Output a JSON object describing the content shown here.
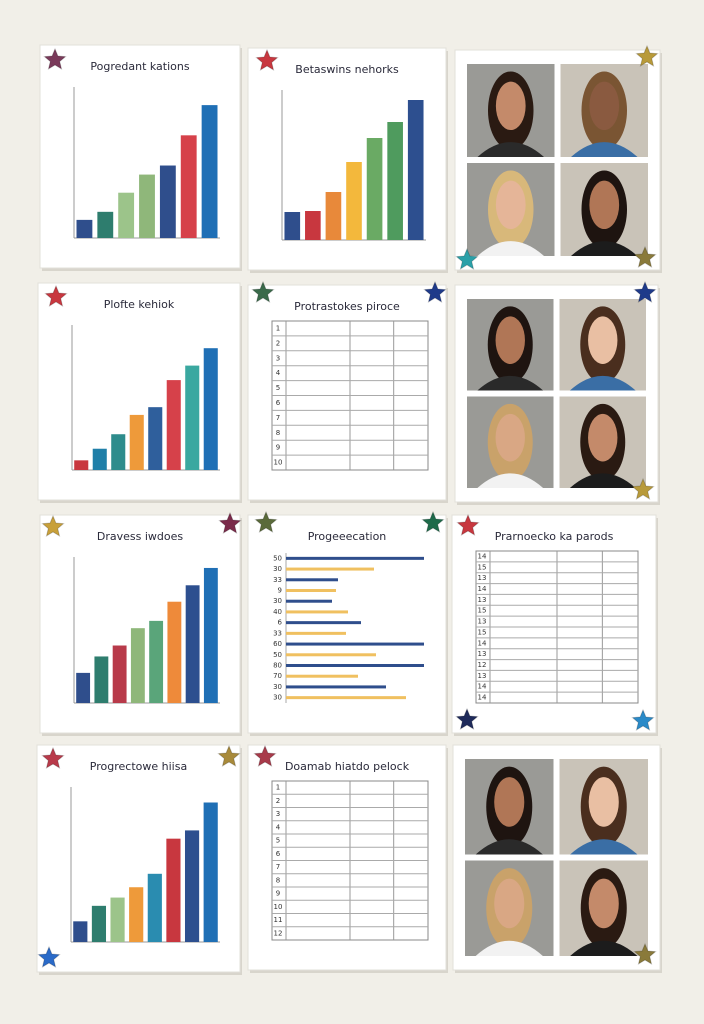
{
  "panels": [
    {
      "kind": "bar",
      "title": "Pogredant kations",
      "values": [
        18,
        26,
        45,
        63,
        72,
        102,
        132
      ],
      "colors": [
        "#2f4e8c",
        "#2e7d6e",
        "#9cc48a",
        "#8fb77a",
        "#2f4e8c",
        "#d6414a",
        "#1f6fb5"
      ],
      "ylim": [
        0,
        150
      ]
    },
    {
      "kind": "bar",
      "title": "Betaswins nehorks",
      "values": [
        28,
        29,
        48,
        78,
        102,
        118,
        140
      ],
      "colors": [
        "#2f4e8c",
        "#c8373f",
        "#e8893a",
        "#f3b83c",
        "#6aaa64",
        "#4f9b5e",
        "#2d4f8f"
      ],
      "ylim": [
        0,
        150
      ]
    },
    {
      "kind": "photos"
    },
    {
      "kind": "bar",
      "title": "Plofte kehiok",
      "values": [
        10,
        22,
        37,
        57,
        65,
        93,
        108,
        126
      ],
      "colors": [
        "#c8373f",
        "#1f7fa8",
        "#2e8c8c",
        "#ee9a3a",
        "#2f5f9c",
        "#d6414a",
        "#3aa8a0",
        "#1f6fb5"
      ],
      "ylim": [
        0,
        150
      ]
    },
    {
      "kind": "table",
      "title": "Protrastokes piroce",
      "rows": [
        "1",
        "2",
        "3",
        "4",
        "5",
        "6",
        "7",
        "8",
        "9",
        "10"
      ]
    },
    {
      "kind": "photos"
    },
    {
      "kind": "bar",
      "title": "Dravess iwdoes",
      "values": [
        33,
        51,
        63,
        82,
        90,
        111,
        129,
        148
      ],
      "colors": [
        "#2f4e8c",
        "#2e7d6e",
        "#b83a4a",
        "#8fb77a",
        "#5aa57a",
        "#ee8a3a",
        "#2d4f8f",
        "#1f6fb5"
      ],
      "ylim": [
        0,
        160
      ]
    },
    {
      "kind": "hbar",
      "title": "Progeeecation",
      "rows": [
        "50",
        "30",
        "33",
        "9",
        "30",
        "40",
        "6",
        "33",
        "60",
        "50",
        "80",
        "70",
        "30",
        "30"
      ],
      "values": [
        138,
        88,
        52,
        50,
        46,
        62,
        75,
        60,
        138,
        90,
        138,
        72,
        100,
        120
      ],
      "colors": [
        "#2f4e8c",
        "#f0c060"
      ],
      "xlim": [
        0,
        140
      ]
    },
    {
      "kind": "table",
      "title": "Prarnoecko ka parods",
      "rows": [
        "14",
        "15",
        "13",
        "14",
        "13",
        "15",
        "13",
        "15",
        "14",
        "13",
        "12",
        "13",
        "14",
        "14"
      ]
    },
    {
      "kind": "bar",
      "title": "Progrectowe hiisa",
      "values": [
        20,
        35,
        43,
        53,
        66,
        100,
        108,
        135
      ],
      "colors": [
        "#2f4e8c",
        "#2e7d6e",
        "#9cc48a",
        "#ee9a3a",
        "#2a8cb0",
        "#c8373f",
        "#2d4f8f",
        "#1f6fb5"
      ],
      "ylim": [
        0,
        150
      ]
    },
    {
      "kind": "table",
      "title": "Doamab hiatdo pelock",
      "rows": [
        "1",
        "2",
        "3",
        "4",
        "5",
        "6",
        "7",
        "8",
        "9",
        "10",
        "11",
        "12"
      ]
    },
    {
      "kind": "photos"
    }
  ]
}
